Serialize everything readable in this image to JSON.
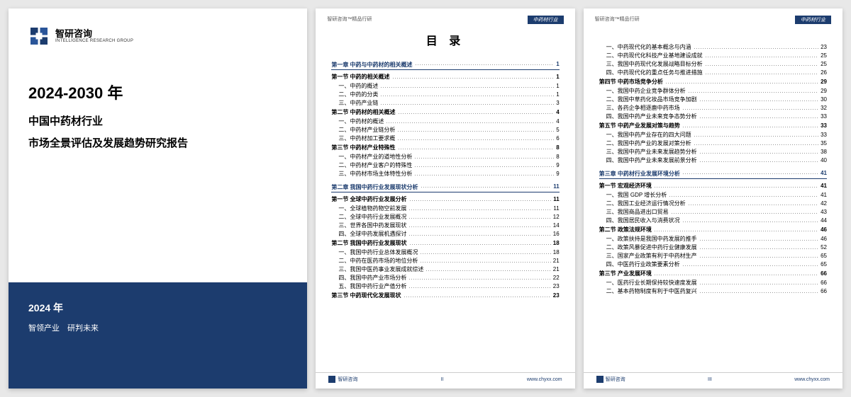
{
  "brand": {
    "name_cn": "智研咨询",
    "name_en": "INTELLIGENCE RESEARCH GROUP",
    "color": "#1c3c6e"
  },
  "cover": {
    "title": "2024-2030 年",
    "line1": "中国中药材行业",
    "line2": "市场全景评估及发展趋势研究报告",
    "year": "2024 年",
    "slogan": "智领产业　研判未来"
  },
  "toc_header_left": "智研咨询™精品行研",
  "toc_badge": "中药材行业",
  "toc_title": "目 录",
  "footer_brand": "智研咨询",
  "footer_url": "www.chyxx.com",
  "page2": {
    "page_number": "II",
    "groups": [
      {
        "type": "chapter",
        "label": "第一章 中药与中药材的相关概述",
        "page": "1"
      },
      {
        "type": "sec",
        "label": "第一节 中药的相关概述",
        "page": "1"
      },
      {
        "type": "item",
        "label": "一、中药的概述",
        "page": "1"
      },
      {
        "type": "item",
        "label": "二、中药的分类",
        "page": "1"
      },
      {
        "type": "item",
        "label": "三、中药产业链",
        "page": "3"
      },
      {
        "type": "sec",
        "label": "第二节 中药材的相关概述",
        "page": "4"
      },
      {
        "type": "item",
        "label": "一、中药材的概述",
        "page": "4"
      },
      {
        "type": "item",
        "label": "二、中药材产业链分析",
        "page": "5"
      },
      {
        "type": "item",
        "label": "三、中药材加工要求概",
        "page": "6"
      },
      {
        "type": "sec",
        "label": "第三节 中药材产业特殊性",
        "page": "8"
      },
      {
        "type": "item",
        "label": "一、中药材产业的道地性分析",
        "page": "8"
      },
      {
        "type": "item",
        "label": "二、中药材产业客户的特殊性",
        "page": "9"
      },
      {
        "type": "item",
        "label": "三、中药材市场主体特性分析",
        "page": "9"
      },
      {
        "type": "chapter",
        "label": "第二章 我国中药行业发展现状分析",
        "page": "11"
      },
      {
        "type": "sec",
        "label": "第一节 全球中药行业发展分析",
        "page": "11"
      },
      {
        "type": "item",
        "label": "一、全球植物药物空前发展",
        "page": "11"
      },
      {
        "type": "item",
        "label": "二、全球中药行业发展概况",
        "page": "12"
      },
      {
        "type": "item",
        "label": "三、世界各国中药发展现状",
        "page": "14"
      },
      {
        "type": "item",
        "label": "四、全球中药发展机遇探讨",
        "page": "16"
      },
      {
        "type": "sec",
        "label": "第二节 我国中药行业发展现状",
        "page": "18"
      },
      {
        "type": "item",
        "label": "一、我国中药行业总体发展概况",
        "page": "18"
      },
      {
        "type": "item",
        "label": "二、中药在医药市场的地位分析",
        "page": "21"
      },
      {
        "type": "item",
        "label": "三、我国中医药事业发展成就综述",
        "page": "21"
      },
      {
        "type": "item",
        "label": "四、我国中药产业市场分析",
        "page": "22"
      },
      {
        "type": "item",
        "label": "五、我国中药行业产值分析",
        "page": "23"
      },
      {
        "type": "sec",
        "label": "第三节 中药现代化发展现状",
        "page": "23"
      }
    ]
  },
  "page3": {
    "page_number": "III",
    "groups": [
      {
        "type": "item",
        "label": "一、中药现代化的基本概念与内涵",
        "page": "23"
      },
      {
        "type": "item",
        "label": "二、中药现代化科技产业基地建设成就",
        "page": "25"
      },
      {
        "type": "item",
        "label": "三、我国中药现代化发展战略目标分析",
        "page": "25"
      },
      {
        "type": "item",
        "label": "四、中药现代化的重点任务与推进措施",
        "page": "26"
      },
      {
        "type": "sec",
        "label": "第四节 中药市场竞争分析",
        "page": "29"
      },
      {
        "type": "item",
        "label": "一、我国中药企业竞争群体分析",
        "page": "29"
      },
      {
        "type": "item",
        "label": "二、我国中草药化妆品市场竞争加剧",
        "page": "30"
      },
      {
        "type": "item",
        "label": "三、各药企争相逐鹿中药市场",
        "page": "32"
      },
      {
        "type": "item",
        "label": "四、我国中药产业未来竞争态势分析",
        "page": "33"
      },
      {
        "type": "sec",
        "label": "第五节 中药产业发展对策与趋势",
        "page": "33"
      },
      {
        "type": "item",
        "label": "一、我国中药产业存在的四大问题",
        "page": "33"
      },
      {
        "type": "item",
        "label": "二、我国中药产业的发展对策分析",
        "page": "35"
      },
      {
        "type": "item",
        "label": "三、我国中药产业未来发展趋势分析",
        "page": "38"
      },
      {
        "type": "item",
        "label": "四、我国中药产业未来发展前景分析",
        "page": "40"
      },
      {
        "type": "chapter",
        "label": "第三章 中药材行业发展环境分析",
        "page": "41"
      },
      {
        "type": "sec",
        "label": "第一节 宏观经济环境",
        "page": "41"
      },
      {
        "type": "item",
        "label": "一、我国 GDP 增长分析",
        "page": "41"
      },
      {
        "type": "item",
        "label": "二、我国工业经济运行情况分析",
        "page": "42"
      },
      {
        "type": "item",
        "label": "三、我国商品进出口贸易",
        "page": "43"
      },
      {
        "type": "item",
        "label": "四、我国居民收入与消费状况",
        "page": "44"
      },
      {
        "type": "sec",
        "label": "第二节 政策法规环境",
        "page": "46"
      },
      {
        "type": "item",
        "label": "一、政策扶持是我国中药发展的推手",
        "page": "46"
      },
      {
        "type": "item",
        "label": "二、政策风暴促进中药行业健康发展",
        "page": "52"
      },
      {
        "type": "item",
        "label": "三、国家产业政策有利于中药材生产",
        "page": "65"
      },
      {
        "type": "item",
        "label": "四、中医药行业政策要素分析",
        "page": "65"
      },
      {
        "type": "sec",
        "label": "第三节 产业发展环境",
        "page": "66"
      },
      {
        "type": "item",
        "label": "一、医药行业长期保持较快速度发展",
        "page": "66"
      },
      {
        "type": "item",
        "label": "二、基本药物制度有利于中医药复兴",
        "page": "66"
      }
    ]
  }
}
